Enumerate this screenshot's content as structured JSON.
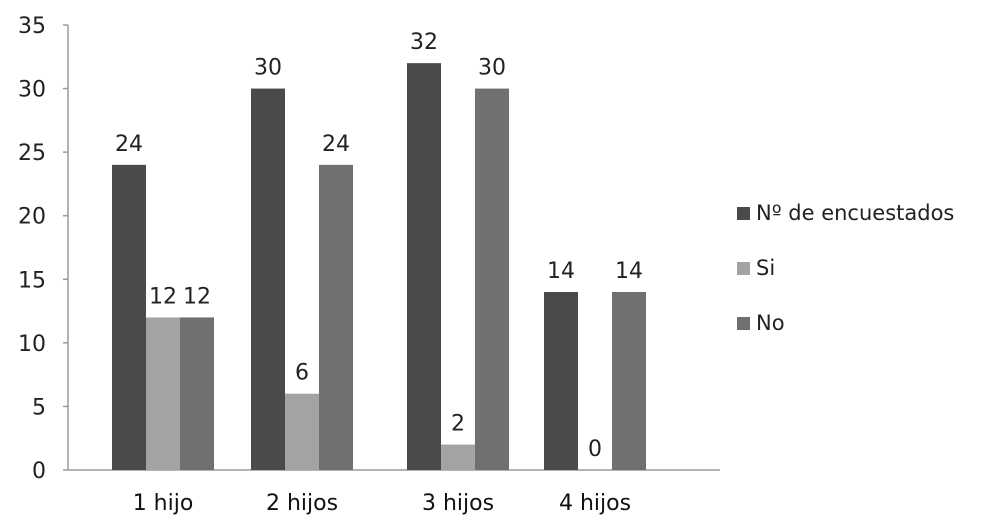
{
  "chart_data": {
    "type": "bar",
    "categories": [
      "1 hijo",
      "2 hijos",
      "3 hijos",
      "4 hijos"
    ],
    "series": [
      {
        "name": "Nº de encuestados",
        "values": [
          24,
          30,
          32,
          14
        ],
        "color": "#4a4a4a"
      },
      {
        "name": "Si",
        "values": [
          12,
          6,
          2,
          0
        ],
        "color": "#a3a3a3"
      },
      {
        "name": "No",
        "values": [
          12,
          24,
          30,
          14
        ],
        "color": "#707070"
      }
    ],
    "ylim": [
      0,
      35
    ],
    "yticks": [
      0,
      5,
      10,
      15,
      20,
      25,
      30,
      35
    ],
    "grid": false,
    "legend_position": "right",
    "data_labels": true
  }
}
